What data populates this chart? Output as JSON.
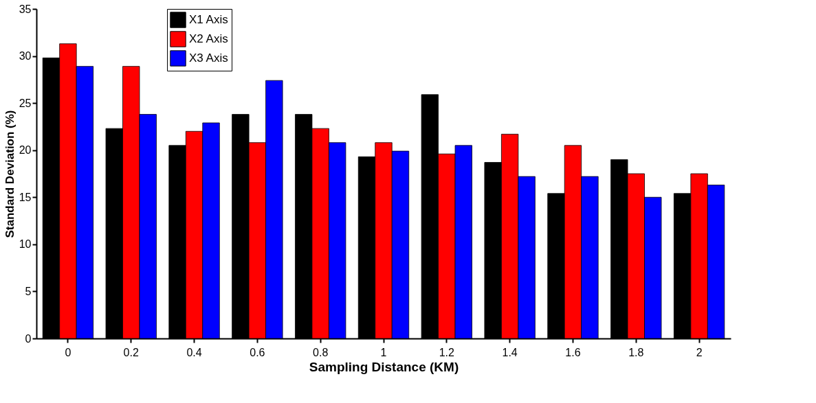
{
  "chart_data": {
    "type": "bar",
    "xlabel": "Sampling Distance (KM)",
    "ylabel": "Standard Deviation (%)",
    "categories": [
      "0",
      "0.2",
      "0.4",
      "0.6",
      "0.8",
      "1",
      "1.2",
      "1.4",
      "1.6",
      "1.8",
      "2"
    ],
    "series": [
      {
        "name": "X1 Axis",
        "color": "#000000",
        "values": [
          29.8,
          22.3,
          20.5,
          23.8,
          23.8,
          19.3,
          25.9,
          18.7,
          15.4,
          19.0,
          15.4
        ]
      },
      {
        "name": "X2 Axis",
        "color": "#ff0000",
        "values": [
          31.3,
          28.9,
          22.0,
          20.8,
          22.3,
          20.8,
          19.6,
          21.7,
          20.5,
          17.5,
          17.5
        ]
      },
      {
        "name": "X3 Axis",
        "color": "#0000ff",
        "values": [
          28.9,
          23.8,
          22.9,
          27.4,
          20.8,
          19.9,
          20.5,
          17.2,
          17.2,
          15.0,
          16.3
        ]
      }
    ],
    "ylim": [
      0,
      35
    ],
    "yticks": [
      0,
      5,
      10,
      15,
      20,
      25,
      30,
      35
    ],
    "grid": false,
    "legend": "top left"
  }
}
